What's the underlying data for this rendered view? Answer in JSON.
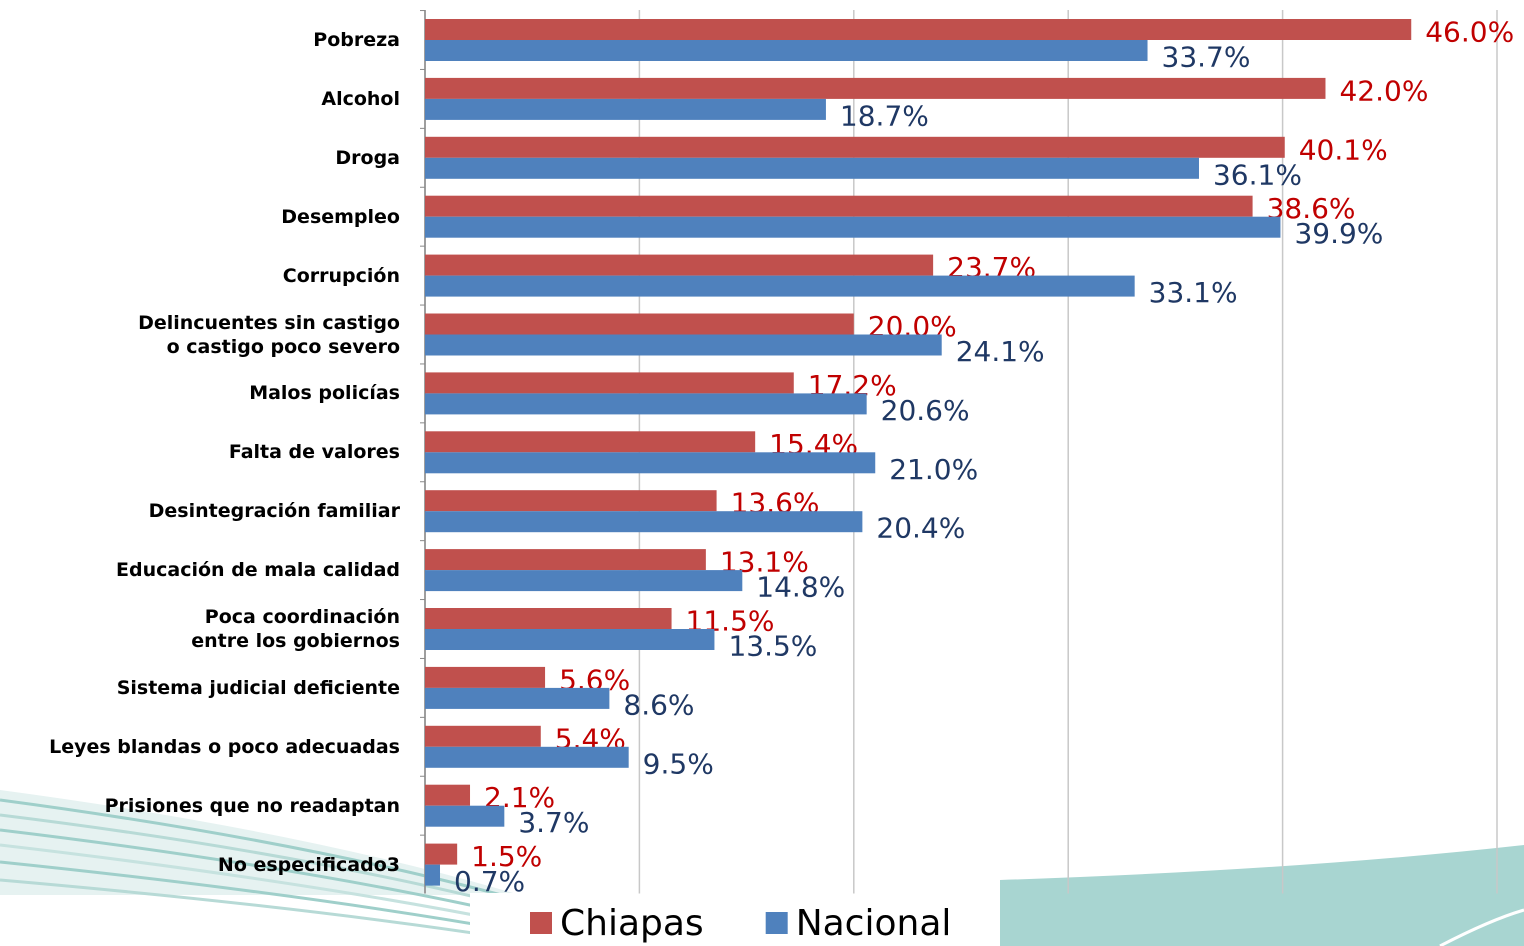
{
  "chart_data": {
    "type": "bar",
    "orientation": "horizontal",
    "categories": [
      "Pobreza",
      "Alcohol",
      "Droga",
      "Desempleo",
      "Corrupción",
      "Delincuentes sin castigo\no castigo poco severo",
      "Malos policías",
      "Falta de valores",
      "Desintegración familiar",
      "Educación de mala calidad",
      "Poca coordinación\nentre los gobiernos",
      "Sistema judicial deficiente",
      "Leyes blandas o poco adecuadas",
      "Prisiones que no readaptan",
      "No especificado3"
    ],
    "series": [
      {
        "name": "Chiapas",
        "color": "#c0504d",
        "label_color": "#c00000",
        "values": [
          46.0,
          42.0,
          40.1,
          38.6,
          23.7,
          20.0,
          17.2,
          15.4,
          13.6,
          13.1,
          11.5,
          5.6,
          5.4,
          2.1,
          1.5
        ],
        "value_labels": [
          "46.0%",
          "42.0%",
          "40.1%",
          "38.6%",
          "23.7%",
          "20.0%",
          "17.2%",
          "15.4%",
          "13.6%",
          "13.1%",
          "11.5%",
          "5.6%",
          "5.4%",
          "2.1%",
          "1.5%"
        ]
      },
      {
        "name": "Nacional",
        "color": "#4f81bd",
        "label_color": "#1f3864",
        "values": [
          33.7,
          18.7,
          36.1,
          39.9,
          33.1,
          24.1,
          20.6,
          21.0,
          20.4,
          14.8,
          13.5,
          8.6,
          9.5,
          3.7,
          0.7
        ],
        "value_labels": [
          "33.7%",
          "18.7%",
          "36.1%",
          "39.9%",
          "33.1%",
          "24.1%",
          "20.6%",
          "21.0%",
          "20.4%",
          "14.8%",
          "13.5%",
          "8.6%",
          "9.5%",
          "3.7%",
          "0.7%"
        ]
      }
    ],
    "xlim": [
      0,
      50
    ],
    "xticks": [
      0,
      10,
      20,
      30,
      40,
      50
    ],
    "grid": true,
    "legend": "bottom"
  }
}
